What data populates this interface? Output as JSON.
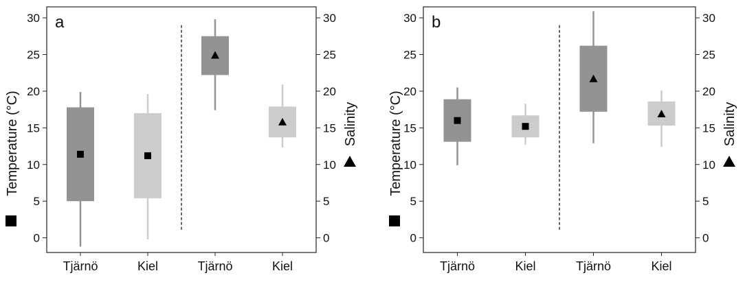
{
  "chart_data": [
    {
      "type": "box",
      "panel_label": "a",
      "categories": [
        "Tjärnö",
        "Kiel",
        "Tjärnö",
        "Kiel"
      ],
      "y_left_label": "Temperature (°C)",
      "y_right_label": "Salinity",
      "ylim": [
        -2,
        31.5
      ],
      "yticks": [
        0,
        5,
        10,
        15,
        20,
        25,
        30
      ],
      "divider_after_category": 2,
      "colors": {
        "dark": "#939393",
        "light": "#cccccc",
        "divider": "#222222"
      },
      "boxes": [
        {
          "category": "Tjärnö",
          "variable": "Temperature",
          "min": -1.2,
          "q1": 5,
          "median": 11.4,
          "q3": 17.8,
          "max": 19.9,
          "marker": "square",
          "shade": "dark"
        },
        {
          "category": "Kiel",
          "variable": "Temperature",
          "min": -0.2,
          "q1": 5.4,
          "median": 11.2,
          "q3": 17.0,
          "max": 19.6,
          "marker": "square",
          "shade": "light"
        },
        {
          "category": "Tjärnö",
          "variable": "Salinity",
          "min": 17.4,
          "q1": 22.2,
          "median": 24.9,
          "q3": 27.5,
          "max": 29.8,
          "marker": "triangle",
          "shade": "dark"
        },
        {
          "category": "Kiel",
          "variable": "Salinity",
          "min": 12.3,
          "q1": 13.7,
          "median": 15.8,
          "q3": 17.9,
          "max": 20.9,
          "marker": "triangle",
          "shade": "light"
        }
      ]
    },
    {
      "type": "box",
      "panel_label": "b",
      "categories": [
        "Tjärnö",
        "Kiel",
        "Tjärnö",
        "Kiel"
      ],
      "y_left_label": "Temperature (°C)",
      "y_right_label": "Salinity",
      "ylim": [
        -2,
        31.5
      ],
      "yticks": [
        0,
        5,
        10,
        15,
        20,
        25,
        30
      ],
      "divider_after_category": 2,
      "colors": {
        "dark": "#939393",
        "light": "#cccccc",
        "divider": "#222222"
      },
      "boxes": [
        {
          "category": "Tjärnö",
          "variable": "Temperature",
          "min": 9.9,
          "q1": 13.1,
          "median": 16.0,
          "q3": 18.9,
          "max": 20.5,
          "marker": "square",
          "shade": "dark"
        },
        {
          "category": "Kiel",
          "variable": "Temperature",
          "min": 12.7,
          "q1": 13.7,
          "median": 15.2,
          "q3": 16.7,
          "max": 18.3,
          "marker": "square",
          "shade": "light"
        },
        {
          "category": "Tjärnö",
          "variable": "Salinity",
          "min": 12.9,
          "q1": 17.2,
          "median": 21.7,
          "q3": 26.2,
          "max": 30.9,
          "marker": "triangle",
          "shade": "dark"
        },
        {
          "category": "Kiel",
          "variable": "Salinity",
          "min": 12.4,
          "q1": 15.3,
          "median": 16.9,
          "q3": 18.6,
          "max": 20.1,
          "marker": "triangle",
          "shade": "light"
        }
      ]
    }
  ]
}
